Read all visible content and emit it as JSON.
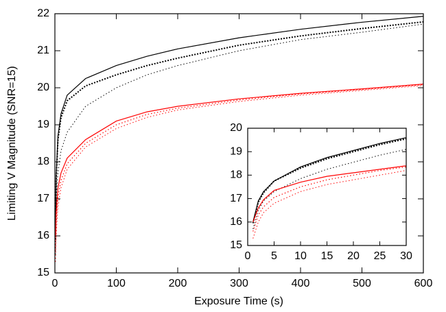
{
  "chart_data": [
    {
      "type": "line",
      "xlabel": "Exposure Time (s)",
      "ylabel": "Limiting V Magnitude (SNR=15)",
      "x": [
        1,
        2,
        5,
        10,
        20,
        50,
        100,
        150,
        200,
        300,
        400,
        500,
        600
      ],
      "series": [
        {
          "color": "#000000",
          "dash": "solid",
          "width": 1.2,
          "values": [
            16.0,
            17.6,
            18.7,
            19.3,
            19.8,
            20.25,
            20.6,
            20.85,
            21.05,
            21.35,
            21.58,
            21.77,
            21.93
          ]
        },
        {
          "color": "#000000",
          "dash": "dotted",
          "width": 2,
          "values": [
            15.9,
            17.5,
            18.6,
            19.2,
            19.65,
            20.05,
            20.35,
            20.6,
            20.8,
            21.15,
            21.4,
            21.6,
            21.78
          ]
        },
        {
          "color": "#000000",
          "dash": "dotted",
          "width": 1,
          "values": [
            15.5,
            17.0,
            17.7,
            18.3,
            18.8,
            19.5,
            20.0,
            20.35,
            20.6,
            21.0,
            21.3,
            21.5,
            21.72
          ]
        },
        {
          "color": "#ff0000",
          "dash": "solid",
          "width": 1.2,
          "values": [
            16.0,
            16.6,
            17.3,
            17.7,
            18.1,
            18.6,
            19.1,
            19.35,
            19.5,
            19.7,
            19.85,
            19.97,
            20.1
          ]
        },
        {
          "color": "#ff0000",
          "dash": "dotted",
          "width": 1.2,
          "values": [
            15.6,
            16.3,
            17.05,
            17.5,
            17.95,
            18.5,
            19.0,
            19.28,
            19.45,
            19.67,
            19.83,
            19.95,
            20.08
          ]
        },
        {
          "color": "#ff0000",
          "dash": "dotted",
          "width": 1,
          "values": [
            15.3,
            16.0,
            16.8,
            17.3,
            17.8,
            18.4,
            18.9,
            19.2,
            19.4,
            19.63,
            19.8,
            19.93,
            20.06
          ]
        }
      ],
      "xlim": [
        0,
        600
      ],
      "ylim": [
        15,
        22
      ],
      "xticks": [
        0,
        100,
        200,
        300,
        400,
        500,
        600
      ],
      "yticks": [
        15,
        16,
        17,
        18,
        19,
        20,
        21,
        22
      ]
    },
    {
      "type": "line",
      "x": [
        1,
        2,
        3,
        5,
        10,
        15,
        20,
        25,
        30
      ],
      "series": [
        {
          "color": "#000000",
          "dash": "solid",
          "width": 1.2,
          "values": [
            16.0,
            16.9,
            17.3,
            17.75,
            18.35,
            18.75,
            19.05,
            19.35,
            19.6
          ]
        },
        {
          "color": "#000000",
          "dash": "dotted",
          "width": 2,
          "values": [
            15.95,
            16.85,
            17.25,
            17.75,
            18.3,
            18.7,
            19.0,
            19.3,
            19.55
          ]
        },
        {
          "color": "#000000",
          "dash": "dotted",
          "width": 1,
          "values": [
            15.7,
            16.5,
            16.9,
            17.3,
            17.85,
            18.25,
            18.55,
            18.85,
            19.1
          ]
        },
        {
          "color": "#ff0000",
          "dash": "solid",
          "width": 1.2,
          "values": [
            16.0,
            16.6,
            16.95,
            17.35,
            17.7,
            17.95,
            18.1,
            18.25,
            18.4
          ]
        },
        {
          "color": "#ff0000",
          "dash": "dotted",
          "width": 1.2,
          "values": [
            15.6,
            16.3,
            16.65,
            17.05,
            17.5,
            17.8,
            18.0,
            18.2,
            18.35
          ]
        },
        {
          "color": "#ff0000",
          "dash": "dotted",
          "width": 1,
          "values": [
            15.3,
            16.0,
            16.4,
            16.8,
            17.3,
            17.6,
            17.8,
            18.0,
            18.2
          ]
        }
      ],
      "xlim": [
        0,
        30
      ],
      "ylim": [
        15,
        20
      ],
      "xticks": [
        0,
        5,
        10,
        15,
        20,
        25,
        30
      ],
      "yticks": [
        15,
        16,
        17,
        18,
        19,
        20
      ]
    }
  ]
}
